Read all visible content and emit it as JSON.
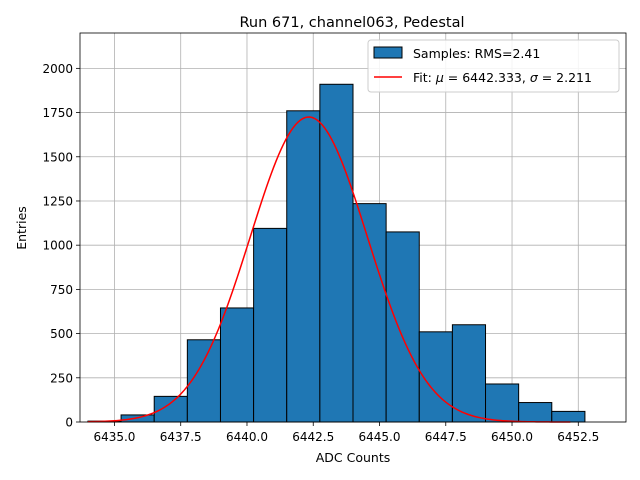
{
  "chart_data": {
    "type": "bar",
    "title": "Run 671, channel063, Pedestal",
    "xlabel": "ADC Counts",
    "ylabel": "Entries",
    "xlim": [
      6433.7,
      6454.3
    ],
    "ylim": [
      0,
      2200
    ],
    "grid": true,
    "legend_position": "top-right",
    "x_ticks": [
      6435.0,
      6437.5,
      6440.0,
      6442.5,
      6445.0,
      6447.5,
      6450.0,
      6452.5
    ],
    "x_tick_labels": [
      "6435.0",
      "6437.5",
      "6440.0",
      "6442.5",
      "6445.0",
      "6447.5",
      "6450.0",
      "6452.5"
    ],
    "y_ticks": [
      0,
      250,
      500,
      750,
      1000,
      1250,
      1500,
      1750,
      2000
    ],
    "y_tick_labels": [
      "0",
      "250",
      "500",
      "750",
      "1000",
      "1250",
      "1500",
      "1750",
      "2000"
    ],
    "histogram": {
      "name": "Samples: RMS=2.41",
      "color": "#1f77b4",
      "edge_color": "#000000",
      "bin_edges": [
        6434.0,
        6435.25,
        6436.5,
        6437.75,
        6439.0,
        6440.25,
        6441.5,
        6442.75,
        6444.0,
        6445.25,
        6446.5,
        6447.75,
        6449.0,
        6450.25,
        6451.5,
        6452.75,
        6454.0
      ],
      "counts": [
        5,
        40,
        145,
        465,
        645,
        1095,
        1760,
        1910,
        1235,
        1075,
        510,
        550,
        215,
        110,
        60,
        0
      ]
    },
    "fit": {
      "name": "Fit: μ = 6442.333, σ = 2.211",
      "legend_prefix": "Fit: ",
      "legend_mu_symbol": "μ",
      "legend_mu_value": " = 6442.333, ",
      "legend_sigma_symbol": "σ",
      "legend_sigma_value": " = 2.211",
      "color": "#ff0000",
      "mu": 6442.333,
      "sigma": 2.211,
      "amplitude": 1725,
      "x_range": [
        6434.0,
        6452.2
      ]
    },
    "legend": [
      "Samples: RMS=2.41",
      "Fit: μ = 6442.333, σ = 2.211"
    ]
  }
}
